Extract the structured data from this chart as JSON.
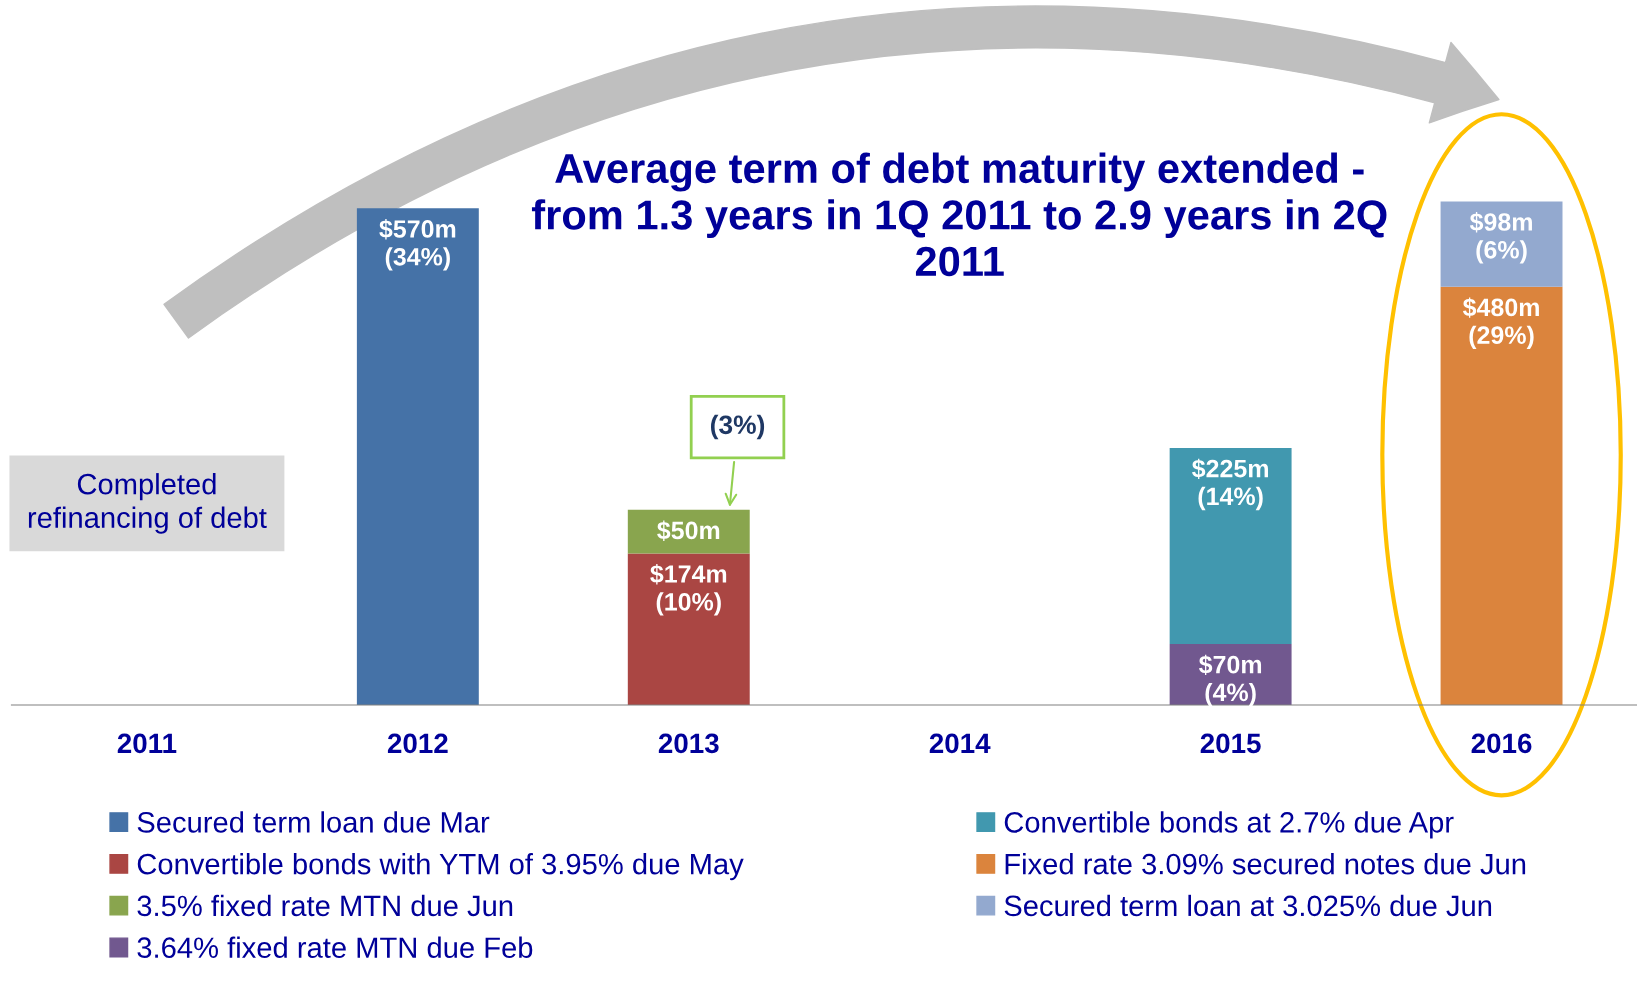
{
  "chart_data": {
    "type": "bar",
    "stacked": true,
    "title": "Average term of debt maturity extended - from 1.3 years in 1Q 2011 to 2.9 years in 2Q 2011",
    "categories": [
      "2011",
      "2012",
      "2013",
      "2014",
      "2015",
      "2016"
    ],
    "series": [
      {
        "name": "Secured term loan due Mar",
        "color": "#4572a7",
        "values": [
          null,
          570,
          null,
          null,
          null,
          null
        ],
        "value_labels": [
          null,
          "$570m",
          null,
          null,
          null,
          null
        ]
      },
      {
        "name": "Convertible bonds with YTM of 3.95% due May",
        "color": "#aa4643",
        "values": [
          null,
          null,
          174,
          null,
          null,
          null
        ],
        "value_labels": [
          null,
          null,
          "$174m",
          null,
          null,
          null
        ]
      },
      {
        "name": "3.5% fixed rate MTN due Jun",
        "color": "#89a54e",
        "values": [
          null,
          null,
          50,
          null,
          null,
          null
        ],
        "value_labels": [
          null,
          null,
          "$50m",
          null,
          null,
          null
        ]
      },
      {
        "name": "3.64% fixed rate MTN due Feb",
        "color": "#71588f",
        "values": [
          null,
          null,
          null,
          null,
          70,
          null
        ],
        "value_labels": [
          null,
          null,
          null,
          null,
          "$70m",
          null
        ]
      },
      {
        "name": "Convertible bonds at 2.7% due Apr",
        "color": "#4198af",
        "values": [
          null,
          null,
          null,
          null,
          225,
          null
        ],
        "value_labels": [
          null,
          null,
          null,
          null,
          "$225m",
          null
        ]
      },
      {
        "name": "Fixed rate 3.09% secured notes due Jun",
        "color": "#db843d",
        "values": [
          null,
          null,
          null,
          null,
          null,
          480
        ],
        "value_labels": [
          null,
          null,
          null,
          null,
          null,
          "$480m"
        ]
      },
      {
        "name": "Secured term loan at 3.025% due Jun",
        "color": "#93a9cf",
        "values": [
          null,
          null,
          null,
          null,
          null,
          98
        ],
        "value_labels": [
          null,
          null,
          null,
          null,
          null,
          "$98m"
        ]
      }
    ],
    "annotations": [
      {
        "text": "(3%)",
        "x": "2013",
        "y": 224
      },
      "Completed refinancing of debt",
      {
        "text": "(34%)",
        "x": "2012",
        "y": 570
      },
      {
        "text": "(10%)",
        "x": "2013",
        "y": 174
      },
      {
        "text": "(4%)",
        "x": "2015",
        "y": 70
      },
      {
        "text": "(14%)",
        "x": "2015",
        "y": 295
      },
      {
        "text": "(29%)",
        "x": "2016",
        "y": 480
      },
      {
        "text": "(6%)",
        "x": "2016",
        "y": 578
      }
    ],
    "legend": "bottom",
    "grid": false
  }
}
